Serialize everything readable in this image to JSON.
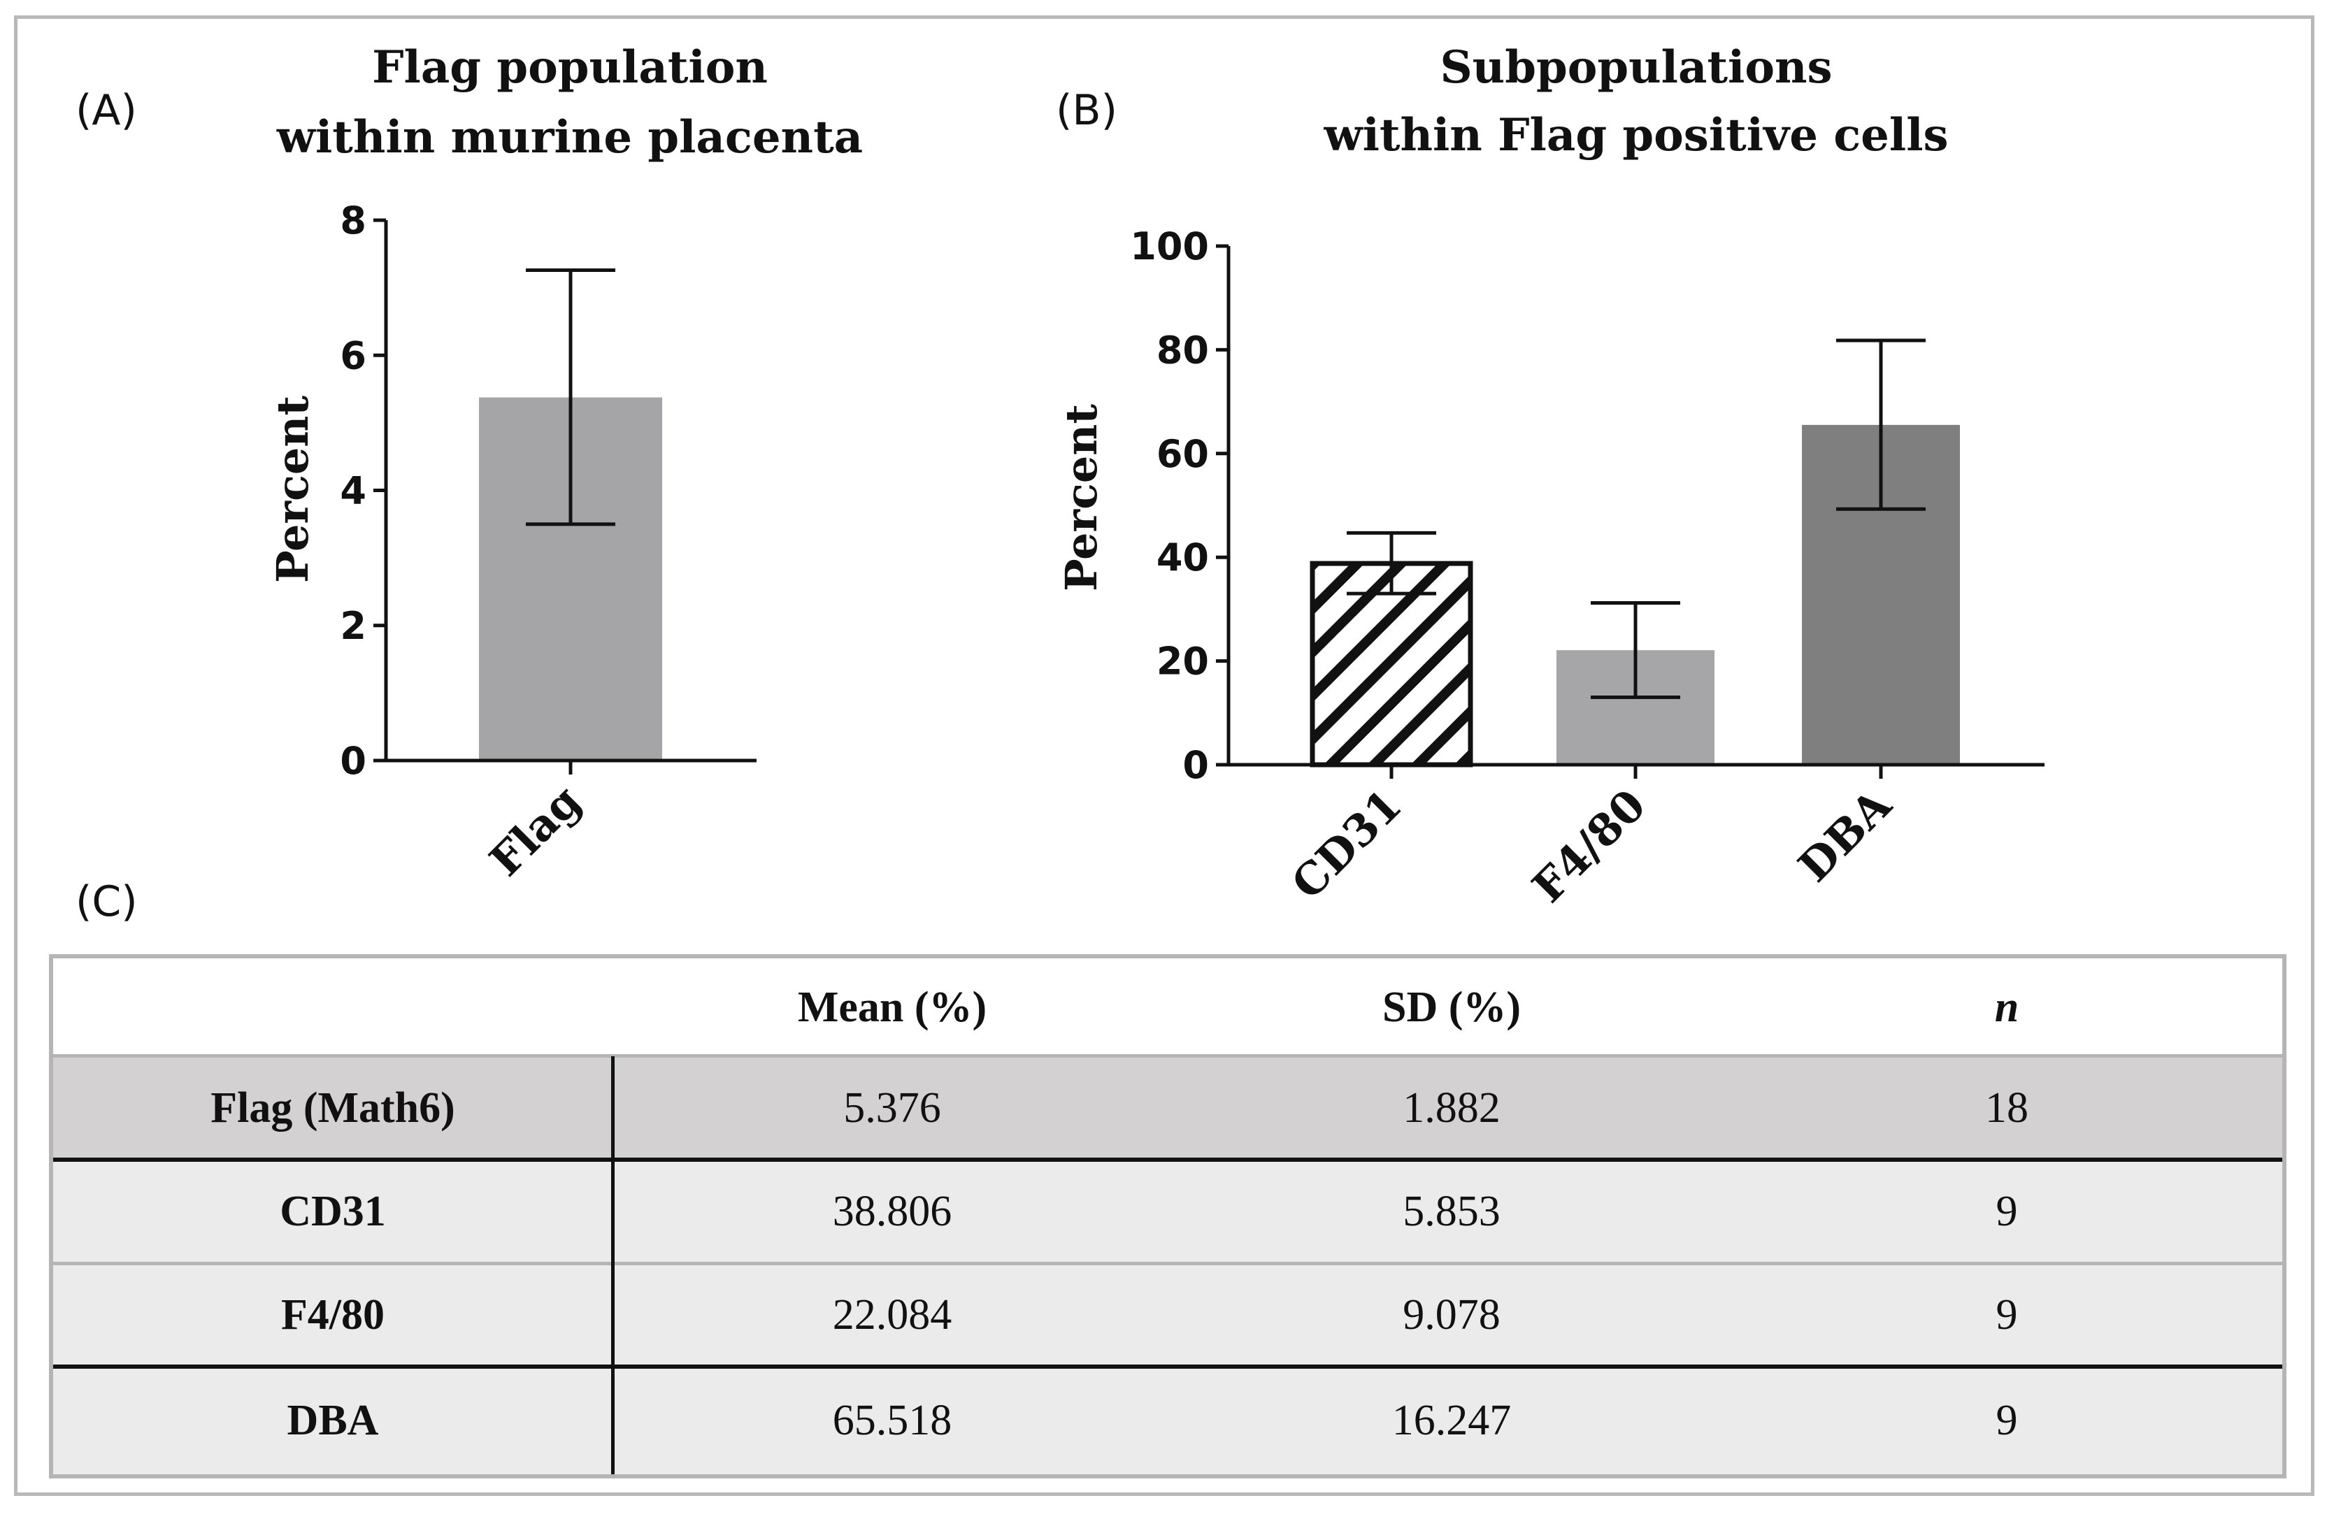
{
  "panels": {
    "a_label": "(A)",
    "b_label": "(B)",
    "c_label": "(C)"
  },
  "chart_data": [
    {
      "type": "bar",
      "panel": "A",
      "title_line1": "Flag population",
      "title_line2": "within murine placenta",
      "ylabel": "Percent",
      "xlabel": "",
      "ylim": [
        0,
        8
      ],
      "yticks": [
        0,
        2,
        4,
        6,
        8
      ],
      "ytick_labels": [
        "0",
        "2",
        "4",
        "6",
        "8"
      ],
      "categories": [
        "Flag"
      ],
      "values": [
        5.376
      ],
      "error_low": [
        3.5
      ],
      "error_high": [
        7.26
      ],
      "colors": [
        "#a5a5a8"
      ],
      "patterns": [
        "solid"
      ]
    },
    {
      "type": "bar",
      "panel": "B",
      "title_line1": "Subpopulations",
      "title_line2": "within Flag positive cells",
      "ylabel": "Percent",
      "xlabel": "",
      "ylim": [
        0,
        100
      ],
      "yticks": [
        0,
        20,
        40,
        60,
        80,
        100
      ],
      "ytick_labels": [
        "0",
        "20",
        "40",
        "60",
        "80",
        "100"
      ],
      "categories": [
        "CD31",
        "F4/80",
        "DBA"
      ],
      "values": [
        38.806,
        22.084,
        65.518
      ],
      "error_low": [
        33.0,
        13.0,
        49.3
      ],
      "error_high": [
        44.7,
        31.2,
        81.8
      ],
      "colors": [
        "#ffffff",
        "#a6a6a8",
        "#7f7f7f"
      ],
      "patterns": [
        "hatch",
        "solid",
        "solid"
      ]
    }
  ],
  "table": {
    "headers": [
      "",
      "Mean (%)",
      "SD (%)",
      "n"
    ],
    "rows": [
      {
        "name": "Flag (Math6)",
        "mean": "5.376",
        "sd": "1.882",
        "n": "18"
      },
      {
        "name": "CD31",
        "mean": "38.806",
        "sd": "5.853",
        "n": "9"
      },
      {
        "name": "F4/80",
        "mean": "22.084",
        "sd": "9.078",
        "n": "9"
      },
      {
        "name": "DBA",
        "mean": "65.518",
        "sd": "16.247",
        "n": "9"
      }
    ]
  }
}
